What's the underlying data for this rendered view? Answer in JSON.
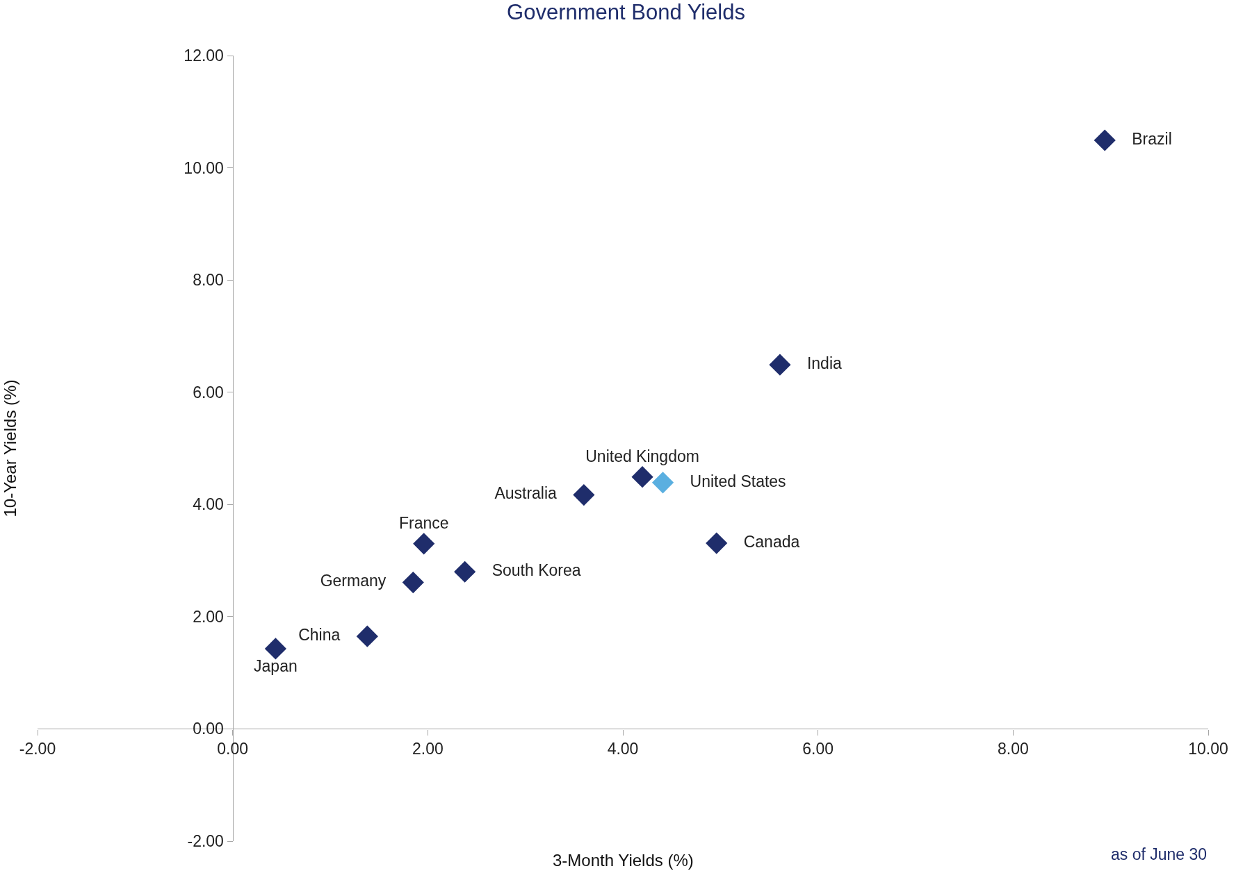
{
  "chart_data": {
    "type": "scatter",
    "title": "Government Bond Yields",
    "xlabel": "3-Month Yields (%)",
    "ylabel": "10-Year Yields (%)",
    "annotations": [
      "as of June 30"
    ],
    "xlim": [
      -2,
      10
    ],
    "ylim": [
      -2,
      12
    ],
    "xticks": [
      {
        "value": -2,
        "label": "-2.00"
      },
      {
        "value": 0,
        "label": "0.00"
      },
      {
        "value": 2,
        "label": "2.00"
      },
      {
        "value": 4,
        "label": "4.00"
      },
      {
        "value": 6,
        "label": "6.00"
      },
      {
        "value": 8,
        "label": "8.00"
      },
      {
        "value": 10,
        "label": "10.00"
      }
    ],
    "yticks": [
      {
        "value": -2,
        "label": "-2.00"
      },
      {
        "value": 0,
        "label": "0.00"
      },
      {
        "value": 2,
        "label": "2.00"
      },
      {
        "value": 4,
        "label": "4.00"
      },
      {
        "value": 6,
        "label": "6.00"
      },
      {
        "value": 8,
        "label": "8.00"
      },
      {
        "value": 10,
        "label": "10.00"
      },
      {
        "value": 12,
        "label": "12.00"
      }
    ],
    "grid": false,
    "legend": false,
    "marker": "diamond",
    "series": [
      {
        "name": "Japan",
        "color": "#1f2d6b",
        "x": [
          0.44
        ],
        "values": [
          1.43
        ]
      },
      {
        "name": "China",
        "color": "#1f2d6b",
        "x": [
          1.38
        ],
        "values": [
          1.65
        ]
      },
      {
        "name": "Germany",
        "color": "#1f2d6b",
        "x": [
          1.85
        ],
        "values": [
          2.61
        ]
      },
      {
        "name": "France",
        "color": "#1f2d6b",
        "x": [
          1.96
        ],
        "values": [
          3.3
        ]
      },
      {
        "name": "South Korea",
        "color": "#1f2d6b",
        "x": [
          2.38
        ],
        "values": [
          2.8
        ]
      },
      {
        "name": "Australia",
        "color": "#1f2d6b",
        "x": [
          3.6
        ],
        "values": [
          4.17
        ]
      },
      {
        "name": "United Kingdom",
        "color": "#1f2d6b",
        "x": [
          4.2
        ],
        "values": [
          4.49
        ]
      },
      {
        "name": "United States",
        "color": "#5aafe0",
        "x": [
          4.41
        ],
        "values": [
          4.39
        ]
      },
      {
        "name": "Canada",
        "color": "#1f2d6b",
        "x": [
          4.96
        ],
        "values": [
          3.31
        ]
      },
      {
        "name": "India",
        "color": "#1f2d6b",
        "x": [
          5.61
        ],
        "values": [
          6.49
        ]
      },
      {
        "name": "Brazil",
        "color": "#1f2d6b",
        "x": [
          8.94
        ],
        "values": [
          10.49
        ]
      }
    ]
  }
}
